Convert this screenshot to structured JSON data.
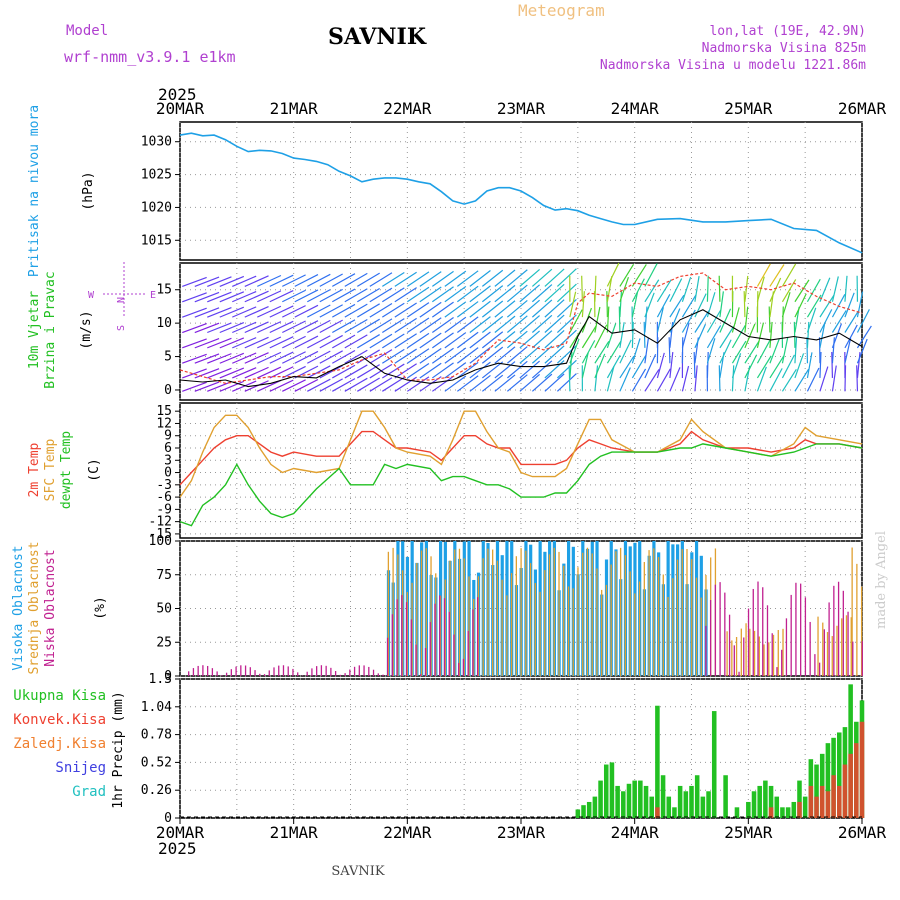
{
  "header": {
    "model_label": "Model",
    "model_name": "wrf-nmm_v3.9.1 e1km",
    "station": "SAVNIK",
    "app_title": "Meteogram",
    "lonlat": "lon,lat (19E, 42.9N)",
    "altitude": "Nadmorska Visina 825m",
    "model_altitude": "Nadmorska Visina u modelu 1221.86m",
    "year_top": "2025",
    "year_bottom": "2025",
    "footer_station": "SAVNIK",
    "credit": "made by Angel"
  },
  "colors": {
    "pressure": "#1ea0e6",
    "temp2m": "#ee4030",
    "sfctemp": "#e0a030",
    "dewpt": "#22c022",
    "high_cloud": "#1ea0e6",
    "mid_cloud": "#e0a030",
    "low_cloud": "#c02090",
    "precip": "#22c022",
    "conv": "#ee4030",
    "wind_label": "#22c022",
    "model_text": "#b040d0"
  },
  "chart_data": [
    {
      "type": "line",
      "id": "pressure",
      "ylabel_lines": [
        "Pritisak na nivou mora"
      ],
      "unit": "(hPa)",
      "ylim": [
        1012,
        1033
      ],
      "yticks": [
        1015,
        1020,
        1025,
        1030
      ],
      "x_days": [
        "20MAR",
        "21MAR",
        "22MAR",
        "23MAR",
        "24MAR",
        "25MAR",
        "26MAR"
      ],
      "x": [
        0,
        0.1,
        0.2,
        0.3,
        0.4,
        0.5,
        0.6,
        0.7,
        0.8,
        0.9,
        1.0,
        1.1,
        1.2,
        1.3,
        1.4,
        1.5,
        1.6,
        1.7,
        1.8,
        1.9,
        2.0,
        2.1,
        2.2,
        2.3,
        2.4,
        2.5,
        2.6,
        2.7,
        2.8,
        2.9,
        3.0,
        3.1,
        3.2,
        3.3,
        3.4,
        3.5,
        3.6,
        3.7,
        3.8,
        3.9,
        4.0,
        4.2,
        4.4,
        4.6,
        4.8,
        5.0,
        5.2,
        5.4,
        5.6,
        5.8,
        6.0
      ],
      "series": [
        {
          "values": [
            1031.0,
            1031.3,
            1030.9,
            1031.0,
            1030.3,
            1029.3,
            1028.5,
            1028.7,
            1028.6,
            1028.2,
            1027.5,
            1027.3,
            1027.0,
            1026.5,
            1025.5,
            1024.8,
            1023.9,
            1024.3,
            1024.5,
            1024.5,
            1024.3,
            1023.9,
            1023.6,
            1022.4,
            1021.0,
            1020.5,
            1021.0,
            1022.5,
            1023.0,
            1023.0,
            1022.5,
            1021.5,
            1020.3,
            1019.6,
            1019.8,
            1019.5,
            1018.8,
            1018.3,
            1017.8,
            1017.4,
            1017.4,
            1018.2,
            1018.3,
            1017.8,
            1017.8,
            1018.0,
            1018.2,
            1016.8,
            1016.5,
            1014.6,
            1013.1
          ]
        }
      ]
    },
    {
      "type": "line",
      "id": "wind",
      "ylabel_lines": [
        "10m Vjetar",
        "Brzina i Pravac"
      ],
      "unit": "(m/s)",
      "compass": {
        "n": "N",
        "s": "S",
        "e": "E",
        "w": "W"
      },
      "ylim": [
        -1.5,
        19
      ],
      "yticks": [
        0,
        5,
        10,
        15
      ],
      "x": [
        0,
        0.2,
        0.4,
        0.6,
        0.8,
        1.0,
        1.2,
        1.4,
        1.6,
        1.8,
        2.0,
        2.2,
        2.4,
        2.6,
        2.8,
        3.0,
        3.2,
        3.4,
        3.5,
        3.6,
        3.8,
        4.0,
        4.2,
        4.4,
        4.6,
        4.8,
        5.0,
        5.2,
        5.4,
        5.6,
        5.8,
        6.0
      ],
      "series": [
        {
          "values": [
            1.5,
            1.2,
            1.5,
            0.5,
            1.0,
            2.0,
            1.8,
            3.5,
            5.0,
            2.5,
            1.5,
            1.0,
            1.5,
            3.0,
            4.0,
            3.5,
            3.5,
            4.0,
            8.0,
            11.0,
            8.5,
            9.0,
            7.0,
            10.5,
            12.0,
            10.0,
            8.0,
            7.5,
            8.0,
            7.5,
            8.5,
            6.5
          ]
        },
        {
          "values": [
            3.0,
            2.0,
            1.0,
            1.5,
            2.0,
            2.0,
            2.5,
            3.0,
            4.5,
            5.5,
            1.5,
            1.5,
            2.0,
            4.0,
            7.5,
            7.0,
            6.0,
            7.0,
            13.0,
            14.5,
            14.0,
            16.0,
            15.5,
            17.0,
            17.5,
            15.0,
            15.5,
            15.0,
            16.0,
            14.0,
            12.5,
            11.5
          ]
        }
      ]
    },
    {
      "type": "line",
      "id": "temperature",
      "ylabel_lines": [
        "2m Temp",
        "SFC Temp",
        "dewpt Temp"
      ],
      "unit": "(C)",
      "ylim": [
        -16,
        17
      ],
      "yticks": [
        -15,
        -12,
        -9,
        -6,
        -3,
        0,
        3,
        6,
        9,
        12,
        15
      ],
      "x": [
        0,
        0.1,
        0.2,
        0.3,
        0.4,
        0.5,
        0.6,
        0.7,
        0.8,
        0.9,
        1.0,
        1.2,
        1.4,
        1.5,
        1.6,
        1.7,
        1.8,
        1.9,
        2.0,
        2.2,
        2.3,
        2.4,
        2.5,
        2.6,
        2.7,
        2.8,
        2.9,
        3.0,
        3.1,
        3.2,
        3.3,
        3.4,
        3.5,
        3.6,
        3.7,
        3.8,
        4.0,
        4.2,
        4.4,
        4.5,
        4.6,
        4.8,
        5.0,
        5.2,
        5.4,
        5.5,
        5.6,
        5.8,
        6.0
      ],
      "series": [
        {
          "name": "2m Temp",
          "values": [
            -3,
            0,
            3,
            6,
            8,
            9,
            9,
            7,
            5,
            4,
            5,
            4,
            4,
            7,
            10,
            10,
            8,
            6,
            6,
            5,
            3,
            6,
            9,
            9,
            7,
            6,
            6,
            2,
            2,
            2,
            2,
            3,
            6,
            8,
            7,
            6,
            5,
            5,
            7,
            10,
            8,
            6,
            6,
            5,
            6,
            8,
            7,
            7,
            6
          ]
        },
        {
          "name": "SFC Temp",
          "values": [
            -6,
            -2,
            5,
            11,
            14,
            14,
            11,
            6,
            2,
            0,
            1,
            0,
            1,
            8,
            15,
            15,
            11,
            6,
            5,
            4,
            2,
            8,
            15,
            15,
            10,
            6,
            5,
            0,
            -1,
            -1,
            -1,
            1,
            7,
            13,
            13,
            8,
            5,
            5,
            8,
            13,
            10,
            6,
            5,
            4,
            7,
            11,
            9,
            8,
            7
          ]
        },
        {
          "name": "dewpt Temp",
          "values": [
            -12,
            -13,
            -8,
            -6,
            -3,
            2,
            -3,
            -7,
            -10,
            -11,
            -10,
            -4,
            1,
            -3,
            -3,
            -3,
            2,
            1,
            2,
            1,
            -2,
            -1,
            -1,
            -2,
            -3,
            -3,
            -4,
            -6,
            -6,
            -6,
            -5,
            -5,
            -2,
            2,
            4,
            5,
            5,
            5,
            6,
            6,
            7,
            6,
            5,
            4,
            5,
            6,
            7,
            7,
            6
          ]
        }
      ]
    },
    {
      "type": "bar",
      "id": "clouds",
      "ylabel_lines": [
        "Visoka Oblacnost",
        "Srednja Oblacnost",
        "Niska Oblacnost"
      ],
      "unit": "(%)",
      "ylim": [
        0,
        100
      ],
      "yticks": [
        0,
        25,
        50,
        75,
        100
      ],
      "x_step_days": 0.0417,
      "series": [
        {
          "name": "Visoka Oblacnost",
          "segments": [
            [
              1.82,
              4.64,
              100
            ]
          ]
        },
        {
          "name": "Srednja Oblacnost",
          "segments": [
            [
              1.82,
              4.7,
              95
            ],
            [
              4.8,
              5.0,
              40
            ],
            [
              5.0,
              5.3,
              35
            ],
            [
              5.6,
              5.9,
              45
            ],
            [
              5.9,
              6.0,
              100
            ]
          ]
        },
        {
          "name": "Niska Oblacnost",
          "segments": [
            [
              0.05,
              1.8,
              8
            ],
            [
              1.8,
              2.6,
              60
            ],
            [
              4.6,
              6.0,
              70
            ]
          ]
        }
      ]
    },
    {
      "type": "bar",
      "id": "precip",
      "ylabel_lines": [
        "1hr Precip"
      ],
      "unit": "(mm)",
      "legend": [
        "Ukupna Kisa",
        "Konvek.Kisa",
        "Zaledj.Kisa",
        "Snijeg",
        "Grad"
      ],
      "ylim": [
        0,
        1.3
      ],
      "yticks": [
        0,
        0.26,
        0.52,
        0.78,
        1.04,
        1.3
      ],
      "x": [
        3.5,
        3.55,
        3.6,
        3.65,
        3.7,
        3.75,
        3.8,
        3.85,
        3.9,
        3.95,
        4.0,
        4.05,
        4.1,
        4.15,
        4.2,
        4.25,
        4.3,
        4.35,
        4.4,
        4.45,
        4.5,
        4.55,
        4.6,
        4.65,
        4.7,
        4.8,
        4.9,
        5.0,
        5.05,
        5.1,
        5.15,
        5.2,
        5.25,
        5.3,
        5.35,
        5.4,
        5.45,
        5.5,
        5.55,
        5.6,
        5.65,
        5.7,
        5.75,
        5.8,
        5.85,
        5.9,
        5.95,
        6.0
      ],
      "series": [
        {
          "name": "Ukupna Kisa",
          "values": [
            0.08,
            0.12,
            0.15,
            0.2,
            0.35,
            0.5,
            0.52,
            0.3,
            0.25,
            0.32,
            0.35,
            0.35,
            0.3,
            0.2,
            1.05,
            0.4,
            0.2,
            0.1,
            0.3,
            0.25,
            0.3,
            0.4,
            0.2,
            0.25,
            1.0,
            0.4,
            0.1,
            0.15,
            0.25,
            0.3,
            0.35,
            0.3,
            0.2,
            0.1,
            0.1,
            0.15,
            0.35,
            0.2,
            0.55,
            0.5,
            0.6,
            0.7,
            0.75,
            0.8,
            0.85,
            1.25,
            0.9,
            1.1
          ]
        },
        {
          "name": "Konvek.Kisa",
          "values": [
            0,
            0,
            0,
            0,
            0,
            0,
            0,
            0,
            0,
            0,
            0,
            0,
            0,
            0,
            0.1,
            0,
            0,
            0,
            0,
            0,
            0,
            0,
            0,
            0,
            0,
            0,
            0,
            0,
            0,
            0,
            0,
            0.1,
            0,
            0,
            0,
            0,
            0.15,
            0,
            0.3,
            0.2,
            0.3,
            0.25,
            0.4,
            0.3,
            0.5,
            0.6,
            0.7,
            0.9
          ]
        }
      ]
    }
  ]
}
